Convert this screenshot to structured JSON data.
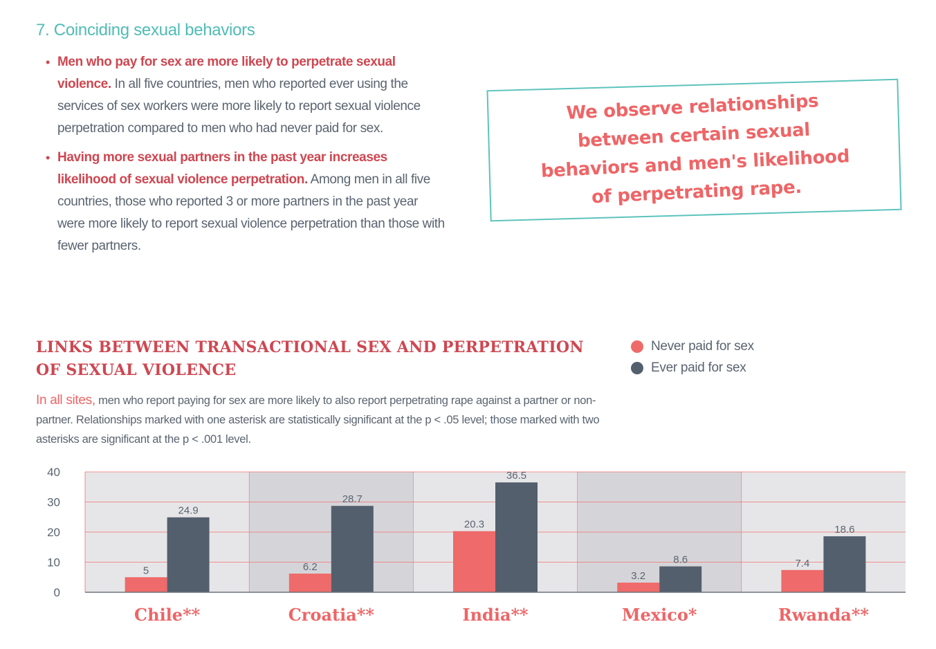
{
  "colors": {
    "teal": "#4fbcb6",
    "coral": "#ce4751",
    "bar_never": "#ef6a6a",
    "bar_ever": "#535f6d",
    "band_light": "#e6e6e8",
    "band_dark": "#d5d5d9",
    "grid": "#f06f6f",
    "text": "#5a6470",
    "callout_border": "#5cc3bd",
    "callout_text": "#ee6567"
  },
  "section": {
    "title": "7. Coinciding sexual behaviors",
    "bullets": [
      {
        "lead": "Men who pay for sex are more likely to perpetrate sexual violence.",
        "text": " In all five countries, men who reported ever using the services of sex workers were more likely to report sexual violence perpetration compared to men who had never paid for sex."
      },
      {
        "lead": "Having more sexual partners in the past year increases likelihood of sexual violence perpetration.",
        "text": " Among men in all five countries, those who reported 3 or more partners in the past year were more likely to report sexual violence perpetration than those with fewer partners."
      }
    ]
  },
  "callout": {
    "text": "We observe relationships between certain sexual behaviors and men's likelihood of perpetrating rape."
  },
  "chart_heading": {
    "title": "LINKS BETWEEN TRANSACTIONAL SEX AND PERPETRATION OF SEXUAL VIOLENCE",
    "desc_lead": "In all sites,",
    "desc": " men who report paying for sex are more likely to also report perpetrating rape against a partner or non-partner. Relationships marked with one asterisk are statistically significant at the p < .05 level; those marked with two asterisks are significant at the p < .001 level."
  },
  "chart_data": {
    "type": "bar",
    "title": "LINKS BETWEEN TRANSACTIONAL SEX AND PERPETRATION OF SEXUAL VIOLENCE",
    "categories": [
      "Chile**",
      "Croatia**",
      "India**",
      "Mexico*",
      "Rwanda**"
    ],
    "series": [
      {
        "name": "Never paid for sex",
        "values": [
          5,
          6.2,
          20.3,
          3.2,
          7.4
        ]
      },
      {
        "name": "Ever paid for sex",
        "values": [
          24.9,
          28.7,
          36.5,
          8.6,
          18.6
        ]
      }
    ],
    "ylim": [
      0,
      40
    ],
    "yticks": [
      0,
      10,
      20,
      30,
      40
    ],
    "grid": true,
    "legend": "top-right",
    "xlabel": "",
    "ylabel": ""
  }
}
